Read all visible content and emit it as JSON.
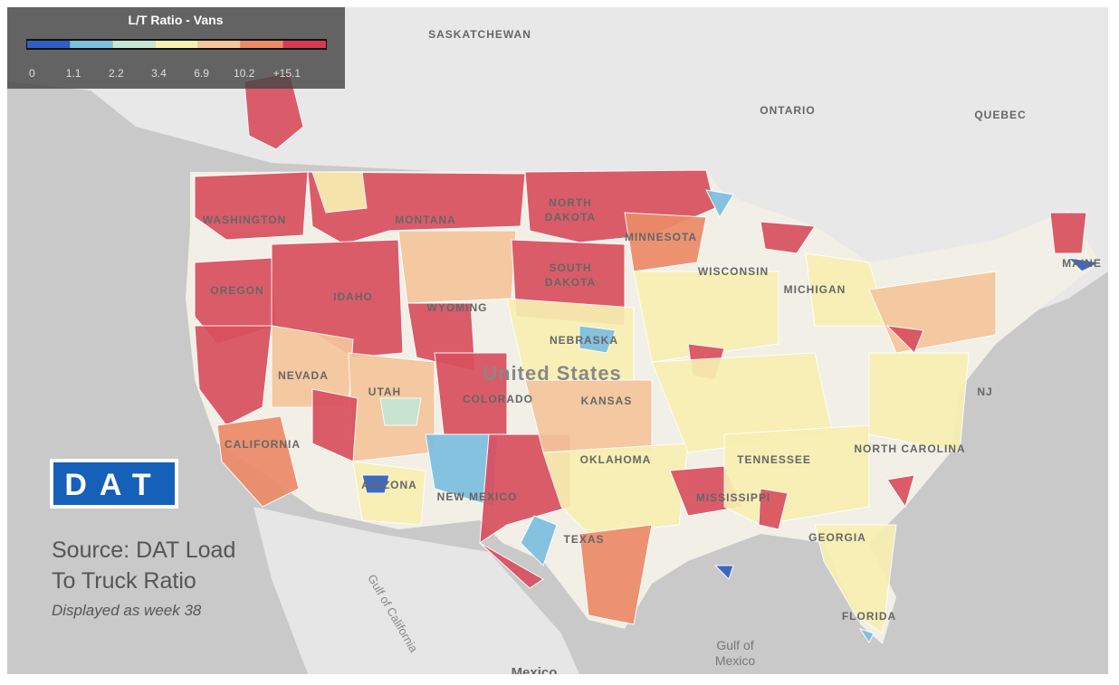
{
  "legend": {
    "title": "L/T Ratio - Vans",
    "ticks": [
      "0",
      "1.1",
      "2.2",
      "3.4",
      "6.9",
      "10.2",
      "+15.1"
    ],
    "colors": [
      "#2f5fc4",
      "#7cbfe0",
      "#c4e6d3",
      "#f8efb2",
      "#f5c59c",
      "#ec8b68",
      "#d63a50"
    ]
  },
  "map_labels": {
    "saskatchewan": "SASKATCHEWAN",
    "ontario": "ONTARIO",
    "quebec": "QUEBEC",
    "washington": "WASHINGTON",
    "montana": "MONTANA",
    "north": "NORTH",
    "dakota": "DAKOTA",
    "minnesota": "MINNESOTA",
    "oregon": "OREGON",
    "idaho": "IDAHO",
    "south": "SOUTH",
    "dakota2": "DAKOTA",
    "wisconsin": "WISCONSIN",
    "michigan": "MICHIGAN",
    "wyoming": "WYOMING",
    "nebraska": "NEBRASKA",
    "nevada": "NEVADA",
    "united_states": "United States",
    "utah": "UTAH",
    "colorado": "COLORADO",
    "kansas": "KANSAS",
    "nj": "NJ",
    "maine": "MAINE",
    "california": "CALIFORNIA",
    "oklahoma": "OKLAHOMA",
    "tennessee": "TENNESSEE",
    "arizona": "ARIZONA",
    "new_mexico": "NEW MEXICO",
    "mississippi": "MISSISSIPPI",
    "carolina": "NORTH CAROLINA",
    "texas": "TEXAS",
    "georgia": "GEORGIA",
    "florida": "FLORIDA",
    "gulf_california": "Gulf of California",
    "gulf_mexico_1": "Gulf of",
    "gulf_mexico_2": "Mexico",
    "mexico": "Mexico"
  },
  "logo": "DAT",
  "source": {
    "line1": "Source:  DAT Load",
    "line2": "To Truck Ratio",
    "note": "Displayed as week 38"
  }
}
